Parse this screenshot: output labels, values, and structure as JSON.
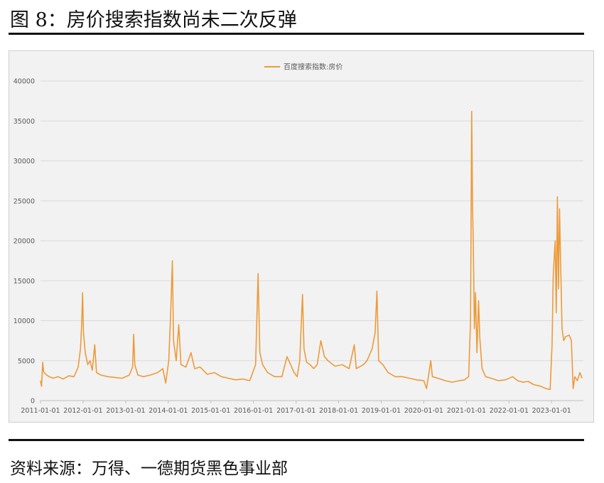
{
  "figure": {
    "title": "图 8：房价搜索指数尚未二次反弹",
    "source": "资料来源：万得、一德期货黑色事业部"
  },
  "chart_data": {
    "type": "line",
    "legend_position": "top-center",
    "grid": true,
    "ylim": [
      0,
      40000
    ],
    "yticks": [
      0,
      5000,
      10000,
      15000,
      20000,
      25000,
      30000,
      35000,
      40000
    ],
    "xlim": [
      "2011-01-01",
      "2023-10-01"
    ],
    "xticks": [
      "2011-01-01",
      "2012-01-01",
      "2013-01-01",
      "2014-01-01",
      "2015-01-01",
      "2016-01-01",
      "2017-01-01",
      "2018-01-01",
      "2019-01-01",
      "2020-01-01",
      "2021-01-01",
      "2022-01-01",
      "2023-01-01"
    ],
    "series": [
      {
        "name": "百度搜索指数:房价",
        "color": "#ED9A3A",
        "points": [
          [
            "2011-01-01",
            2500
          ],
          [
            "2011-01-10",
            1800
          ],
          [
            "2011-01-20",
            4800
          ],
          [
            "2011-01-28",
            3600
          ],
          [
            "2011-02-15",
            3300
          ],
          [
            "2011-03-15",
            3000
          ],
          [
            "2011-04-20",
            2800
          ],
          [
            "2011-06-01",
            3000
          ],
          [
            "2011-07-15",
            2700
          ],
          [
            "2011-09-01",
            3100
          ],
          [
            "2011-10-15",
            3000
          ],
          [
            "2011-11-20",
            4200
          ],
          [
            "2011-12-10",
            6500
          ],
          [
            "2011-12-20",
            9500
          ],
          [
            "2011-12-28",
            13500
          ],
          [
            "2012-01-05",
            8500
          ],
          [
            "2012-01-20",
            6000
          ],
          [
            "2012-02-10",
            4500
          ],
          [
            "2012-03-01",
            5000
          ],
          [
            "2012-03-20",
            3800
          ],
          [
            "2012-04-10",
            7000
          ],
          [
            "2012-04-25",
            3500
          ],
          [
            "2012-06-01",
            3200
          ],
          [
            "2012-08-01",
            3000
          ],
          [
            "2012-10-01",
            2900
          ],
          [
            "2012-12-01",
            2800
          ],
          [
            "2013-02-01",
            3200
          ],
          [
            "2013-03-01",
            4200
          ],
          [
            "2013-03-10",
            8300
          ],
          [
            "2013-03-20",
            4500
          ],
          [
            "2013-04-15",
            3200
          ],
          [
            "2013-06-01",
            3000
          ],
          [
            "2013-08-01",
            3200
          ],
          [
            "2013-10-01",
            3500
          ],
          [
            "2013-11-15",
            4000
          ],
          [
            "2013-12-10",
            2200
          ],
          [
            "2014-01-05",
            5000
          ],
          [
            "2014-01-20",
            10500
          ],
          [
            "2014-02-05",
            17500
          ],
          [
            "2014-02-15",
            7500
          ],
          [
            "2014-03-10",
            5000
          ],
          [
            "2014-04-01",
            9500
          ],
          [
            "2014-04-20",
            4500
          ],
          [
            "2014-06-01",
            4200
          ],
          [
            "2014-07-15",
            6000
          ],
          [
            "2014-08-15",
            4000
          ],
          [
            "2014-10-01",
            4200
          ],
          [
            "2014-12-01",
            3300
          ],
          [
            "2015-02-01",
            3500
          ],
          [
            "2015-04-01",
            3000
          ],
          [
            "2015-06-01",
            2800
          ],
          [
            "2015-08-01",
            2600
          ],
          [
            "2015-10-01",
            2700
          ],
          [
            "2015-12-01",
            2500
          ],
          [
            "2016-01-20",
            4500
          ],
          [
            "2016-02-10",
            15900
          ],
          [
            "2016-02-25",
            6000
          ],
          [
            "2016-03-20",
            4500
          ],
          [
            "2016-05-01",
            3500
          ],
          [
            "2016-07-01",
            3000
          ],
          [
            "2016-09-01",
            3000
          ],
          [
            "2016-10-15",
            5500
          ],
          [
            "2016-11-15",
            4500
          ],
          [
            "2016-12-15",
            3500
          ],
          [
            "2017-01-10",
            3000
          ],
          [
            "2017-02-01",
            5000
          ],
          [
            "2017-02-25",
            13300
          ],
          [
            "2017-03-10",
            6500
          ],
          [
            "2017-04-01",
            4800
          ],
          [
            "2017-05-01",
            4500
          ],
          [
            "2017-06-01",
            4000
          ],
          [
            "2017-07-01",
            4500
          ],
          [
            "2017-08-01",
            7500
          ],
          [
            "2017-09-01",
            5500
          ],
          [
            "2017-10-01",
            5000
          ],
          [
            "2017-12-01",
            4300
          ],
          [
            "2018-02-01",
            4500
          ],
          [
            "2018-04-01",
            4000
          ],
          [
            "2018-05-15",
            7000
          ],
          [
            "2018-06-01",
            4000
          ],
          [
            "2018-08-01",
            4500
          ],
          [
            "2018-09-01",
            5000
          ],
          [
            "2018-10-15",
            6500
          ],
          [
            "2018-11-10",
            8500
          ],
          [
            "2018-11-25",
            13700
          ],
          [
            "2018-12-10",
            5000
          ],
          [
            "2019-01-15",
            4500
          ],
          [
            "2019-03-01",
            3500
          ],
          [
            "2019-05-01",
            3000
          ],
          [
            "2019-07-01",
            3000
          ],
          [
            "2019-09-01",
            2800
          ],
          [
            "2019-11-01",
            2600
          ],
          [
            "2020-01-01",
            2500
          ],
          [
            "2020-01-25",
            1500
          ],
          [
            "2020-02-15",
            3500
          ],
          [
            "2020-03-01",
            5000
          ],
          [
            "2020-03-15",
            3000
          ],
          [
            "2020-05-01",
            2800
          ],
          [
            "2020-07-01",
            2500
          ],
          [
            "2020-09-01",
            2300
          ],
          [
            "2020-11-01",
            2500
          ],
          [
            "2020-12-15",
            2600
          ],
          [
            "2021-01-20",
            3000
          ],
          [
            "2021-02-05",
            10000
          ],
          [
            "2021-02-15",
            36200
          ],
          [
            "2021-02-22",
            24500
          ],
          [
            "2021-03-01",
            19500
          ],
          [
            "2021-03-10",
            9000
          ],
          [
            "2021-03-20",
            13500
          ],
          [
            "2021-04-01",
            6000
          ],
          [
            "2021-04-15",
            12500
          ],
          [
            "2021-04-25",
            8000
          ],
          [
            "2021-05-15",
            4000
          ],
          [
            "2021-06-15",
            3000
          ],
          [
            "2021-08-01",
            2800
          ],
          [
            "2021-10-01",
            2500
          ],
          [
            "2021-12-01",
            2600
          ],
          [
            "2022-02-01",
            3000
          ],
          [
            "2022-03-15",
            2500
          ],
          [
            "2022-05-01",
            2300
          ],
          [
            "2022-06-15",
            2400
          ],
          [
            "2022-08-01",
            2000
          ],
          [
            "2022-10-01",
            1800
          ],
          [
            "2022-11-15",
            1500
          ],
          [
            "2022-12-20",
            1400
          ],
          [
            "2023-01-05",
            7000
          ],
          [
            "2023-01-15",
            15500
          ],
          [
            "2023-02-01",
            20000
          ],
          [
            "2023-02-10",
            11000
          ],
          [
            "2023-02-20",
            25500
          ],
          [
            "2023-03-01",
            14000
          ],
          [
            "2023-03-10",
            24000
          ],
          [
            "2023-03-20",
            17000
          ],
          [
            "2023-04-01",
            9000
          ],
          [
            "2023-04-15",
            7500
          ],
          [
            "2023-05-01",
            8000
          ],
          [
            "2023-06-01",
            8200
          ],
          [
            "2023-06-20",
            7500
          ],
          [
            "2023-07-05",
            1500
          ],
          [
            "2023-07-20",
            3000
          ],
          [
            "2023-08-10",
            2500
          ],
          [
            "2023-09-01",
            3500
          ],
          [
            "2023-09-20",
            2800
          ]
        ]
      }
    ]
  }
}
